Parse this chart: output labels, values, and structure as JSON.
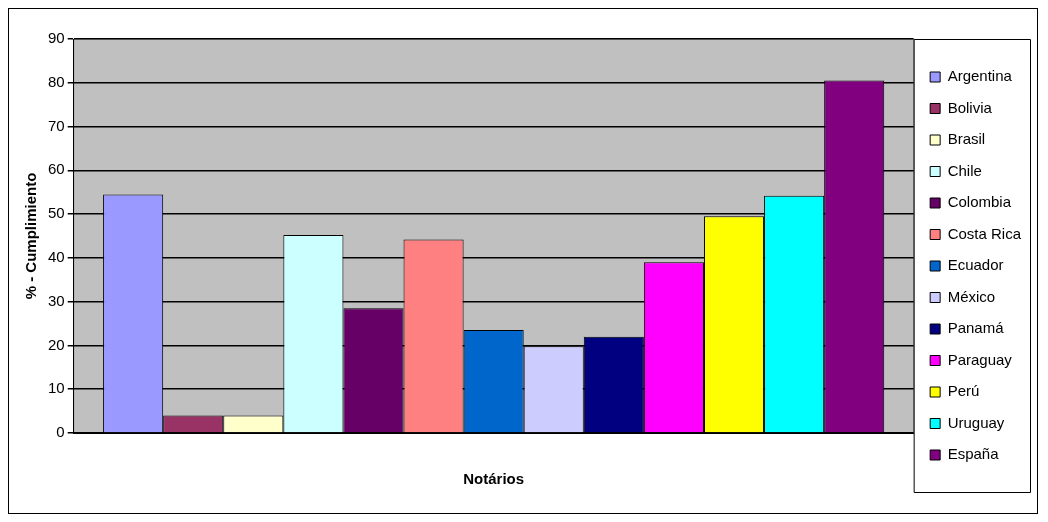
{
  "chart_data": {
    "type": "bar",
    "xlabel": "Notários",
    "ylabel": "% - Cumplimiento",
    "categories": [
      null
    ],
    "series": [
      {
        "name": "Argentina",
        "color": "#9999ff",
        "values": [
          54.5
        ]
      },
      {
        "name": "Bolivia",
        "color": "#993366",
        "values": [
          4
        ]
      },
      {
        "name": "Brasil",
        "color": "#ffffcc",
        "values": [
          4
        ]
      },
      {
        "name": "Chile",
        "color": "#ccffff",
        "values": [
          45.2
        ]
      },
      {
        "name": "Colombia",
        "color": "#660066",
        "values": [
          28.5
        ]
      },
      {
        "name": "Costa Rica",
        "color": "#ff8080",
        "values": [
          44.2
        ]
      },
      {
        "name": "Ecuador",
        "color": "#0066cc",
        "values": [
          23.5
        ]
      },
      {
        "name": "México",
        "color": "#ccccff",
        "values": [
          19.8
        ]
      },
      {
        "name": "Panamá",
        "color": "#000080",
        "values": [
          22
        ]
      },
      {
        "name": "Paraguay",
        "color": "#ff00ff",
        "values": [
          39
        ]
      },
      {
        "name": "Perú",
        "color": "#ffff00",
        "values": [
          49.5
        ]
      },
      {
        "name": "Uruguay",
        "color": "#00ffff",
        "values": [
          54.2
        ]
      },
      {
        "name": "España",
        "color": "#800080",
        "values": [
          80.5
        ]
      }
    ],
    "ylim": [
      0,
      90
    ],
    "yticks": [
      0,
      10,
      20,
      30,
      40,
      50,
      60,
      70,
      80,
      90
    ],
    "grid": "y",
    "legend": "right"
  }
}
